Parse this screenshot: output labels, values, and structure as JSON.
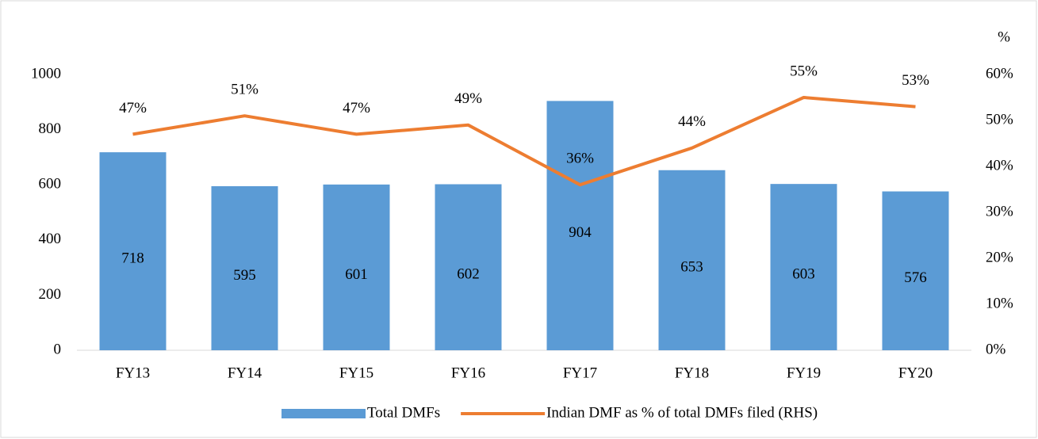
{
  "chart_data": {
    "type": "combo",
    "categories": [
      "FY13",
      "FY14",
      "FY15",
      "FY16",
      "FY17",
      "FY18",
      "FY19",
      "FY20"
    ],
    "series": [
      {
        "name": "Total DMFs",
        "type": "bar",
        "color": "#5b9bd5",
        "values": [
          718,
          595,
          601,
          602,
          904,
          653,
          603,
          576
        ]
      },
      {
        "name": "Indian DMF as % of total DMFs filed (RHS)",
        "type": "line",
        "axis": "y2",
        "color": "#ed7d31",
        "values": [
          47,
          51,
          47,
          49,
          36,
          44,
          55,
          53
        ],
        "value_labels": [
          "47%",
          "51%",
          "47%",
          "49%",
          "36%",
          "44%",
          "55%",
          "53%"
        ]
      }
    ],
    "ylim": [
      0,
      1000
    ],
    "yticks": [
      0,
      200,
      400,
      600,
      800,
      1000
    ],
    "y2lim": [
      0,
      60
    ],
    "y2ticks": [
      {
        "value": 0,
        "label": "0%"
      },
      {
        "value": 10,
        "label": "10%"
      },
      {
        "value": 20,
        "label": "20%"
      },
      {
        "value": 30,
        "label": "30%"
      },
      {
        "value": 40,
        "label": "40%"
      },
      {
        "value": 50,
        "label": "50%"
      },
      {
        "value": 60,
        "label": "60%"
      }
    ],
    "y2_label": "%",
    "legend": "bottom"
  }
}
